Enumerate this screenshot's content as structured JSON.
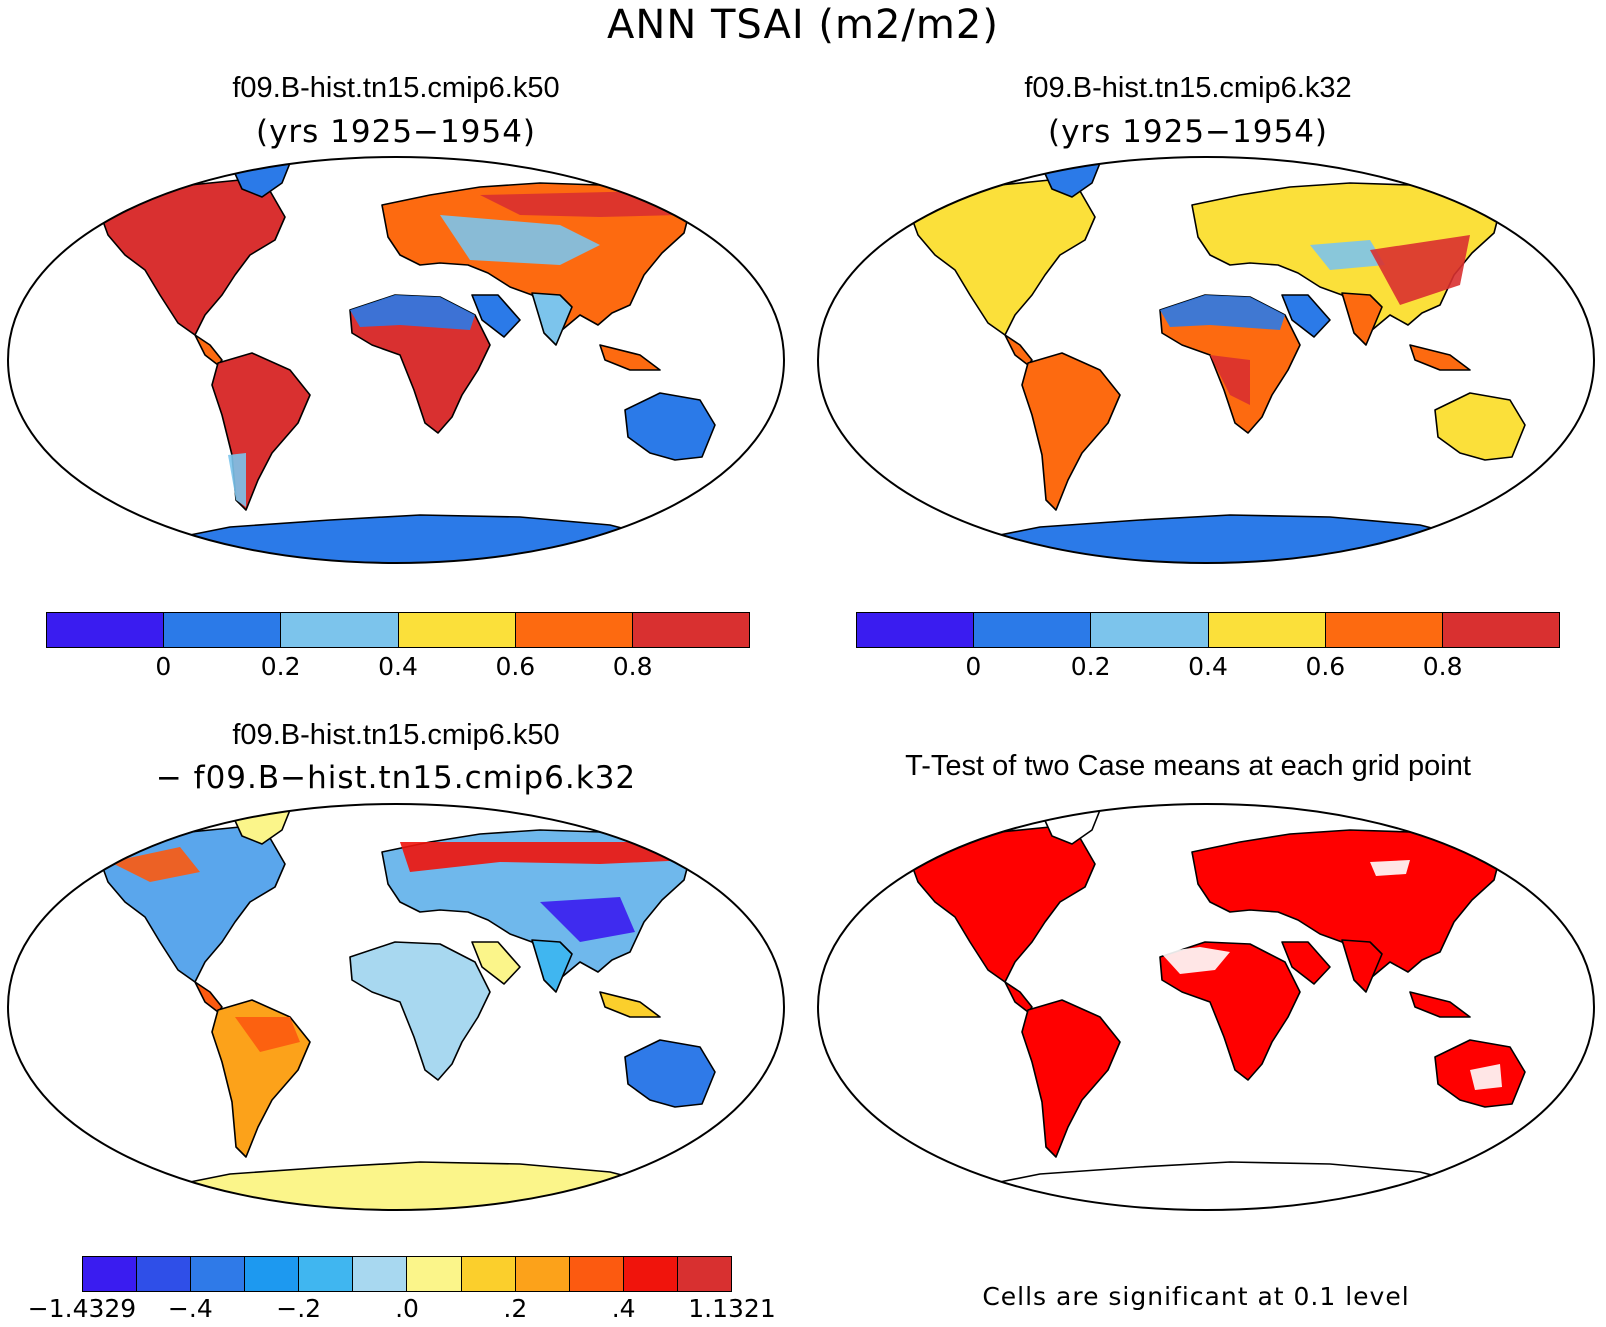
{
  "figure_title": "ANN TSAI (m2/m2)",
  "panels": {
    "top_left": {
      "title": "f09.B-hist.tn15.cmip6.k50",
      "subtitle": "(yrs 1925−1954)"
    },
    "top_right": {
      "title": "f09.B-hist.tn15.cmip6.k32",
      "subtitle": "(yrs 1925−1954)"
    },
    "bottom_left": {
      "title": "f09.B-hist.tn15.cmip6.k50",
      "subtitle": "− f09.B−hist.tn15.cmip6.k32"
    },
    "bottom_right": {
      "title": "T-Test of two Case means at each grid point",
      "note": "Cells are significant at 0.1 level"
    }
  },
  "colorbars": {
    "absolute": {
      "colors": [
        "#3a1cf0",
        "#2b7ae8",
        "#7cc4ec",
        "#fbe03a",
        "#fd6a10",
        "#d93030"
      ],
      "tick_labels": [
        "0",
        "0.2",
        "0.4",
        "0.6",
        "0.8"
      ]
    },
    "difference": {
      "colors": [
        "#3a1cf0",
        "#2f4fe8",
        "#2f7ae8",
        "#1d99f0",
        "#40b6f0",
        "#a8d8f0",
        "#fbf58a",
        "#fbcf2c",
        "#fca21a",
        "#fc5a10",
        "#f0140c",
        "#d83030"
      ],
      "tick_labels": [
        "−1.4329",
        "−.4",
        "−.2",
        ".0",
        ".2",
        ".4",
        "1.1321"
      ]
    }
  },
  "significance_color": "#ff0000",
  "map_colors": {
    "low": "#2b7ae8",
    "mid": "#fbe03a",
    "high": "#d93030",
    "orange": "#fd6a10",
    "light": "#7cc4ec",
    "diff_neutral": "#fbf58a"
  }
}
